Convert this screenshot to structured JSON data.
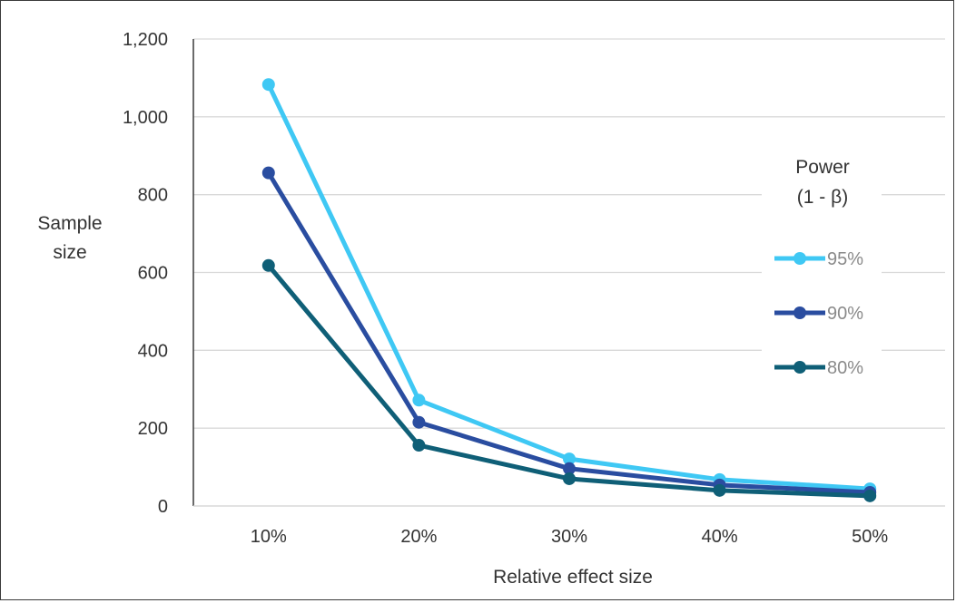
{
  "chart_data": {
    "type": "line",
    "title": "",
    "xlabel": "Relative effect size",
    "ylabel_lines": [
      "Sample",
      "size"
    ],
    "categories": [
      "10%",
      "20%",
      "30%",
      "40%",
      "50%"
    ],
    "ylim": [
      0,
      1200
    ],
    "yticks": [
      0,
      200,
      400,
      600,
      800,
      1000,
      1200
    ],
    "ytick_labels": [
      "0",
      "200",
      "400",
      "600",
      "800",
      "1,000",
      "1,200"
    ],
    "grid": true,
    "legend": {
      "title_lines": [
        "Power",
        "(1 - β)"
      ],
      "placement": "right"
    },
    "series": [
      {
        "name": "95%",
        "color": "#3fc8f4",
        "values": [
          1083,
          272,
          121,
          68,
          44
        ]
      },
      {
        "name": "90%",
        "color": "#2a4da0",
        "values": [
          856,
          215,
          96,
          54,
          35
        ]
      },
      {
        "name": "80%",
        "color": "#0f5f77",
        "values": [
          618,
          156,
          70,
          40,
          26
        ]
      }
    ]
  }
}
